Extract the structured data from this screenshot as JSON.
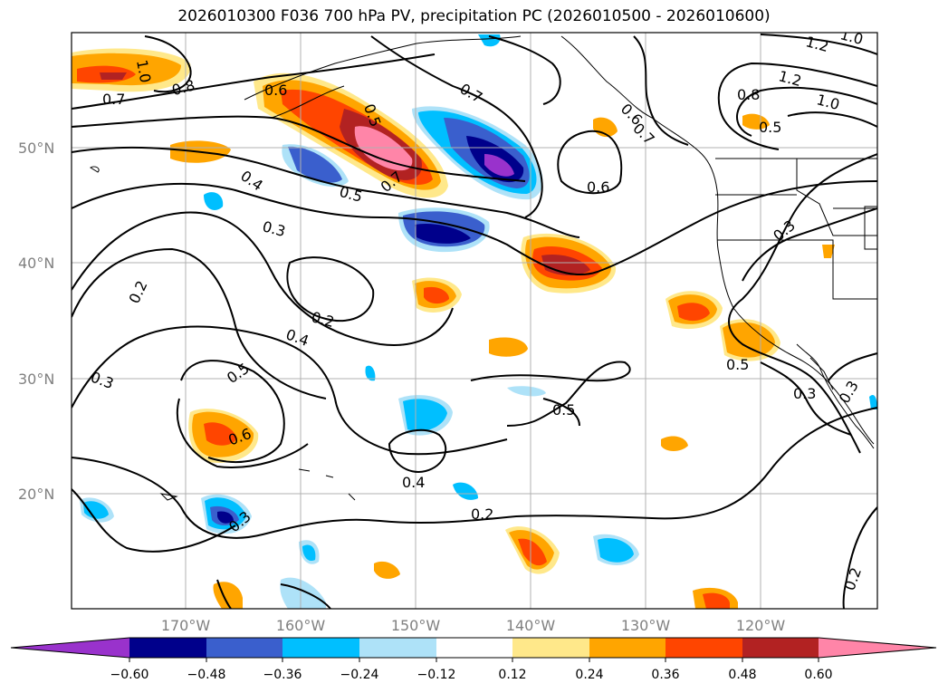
{
  "title": "2026010300 F036 700 hPa PV, precipitation PC (2026010500 - 2026010600)",
  "lat_labels": [
    "50°N",
    "40°N",
    "30°N",
    "20°N"
  ],
  "lon_labels": [
    "170°W",
    "160°W",
    "150°W",
    "140°W",
    "130°W",
    "120°W"
  ],
  "contour_labels": [
    "1.0",
    "0.7",
    "0.8",
    "0.6",
    "0.5",
    "0.7",
    "0.5",
    "0.7",
    "0.6",
    "0.4",
    "0.3",
    "0.2",
    "0.2",
    "0.4",
    "0.5",
    "0.6",
    "0.3",
    "0.3",
    "0.4",
    "0.2",
    "0.5",
    "0.3",
    "0.6",
    "0.8",
    "0.7",
    "0.5",
    "1.2",
    "1.2",
    "1.0",
    "1.0",
    "0.3",
    "0.5",
    "0.3",
    "0.2"
  ],
  "colorbar": {
    "ticks": [
      "−0.60",
      "−0.48",
      "−0.36",
      "−0.24",
      "−0.12",
      "0.12",
      "0.24",
      "0.36",
      "0.48",
      "0.60"
    ],
    "colors": [
      "#9932cc",
      "#00008b",
      "#3a5fcd",
      "#00bfff",
      "#aee2f8",
      "#ffffff",
      "#ffe88a",
      "#ffa500",
      "#ff4500",
      "#b22222",
      "#ff85a8"
    ]
  },
  "colors": {
    "frame": "#000000",
    "grid": "#b0b0b0",
    "contour": "#000000"
  }
}
